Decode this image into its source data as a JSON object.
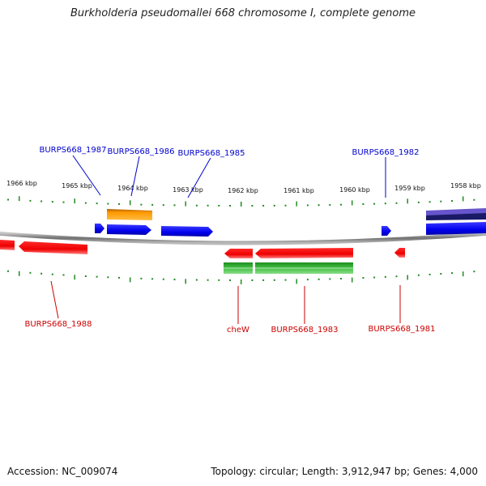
{
  "title": "Burkholderia pseudomallei 668 chromosome I, complete genome",
  "footer": {
    "accession": "Accession: NC_009074",
    "topology": "Topology: circular; Length: 3,912,947 bp; Genes: 4,000"
  },
  "colors": {
    "plus_strand_gene": "#0000ee",
    "minus_strand_gene": "#ee0000",
    "orange_feature": "#ff9900",
    "green_feature": "#33bb33",
    "purple_feature": "#6655cc",
    "navy_feature": "#1a1a66",
    "tick": "#228b22",
    "backbone": "#888888"
  },
  "ticks": [
    "1966 kbp",
    "1965 kbp",
    "1964 kbp",
    "1963 kbp",
    "1962 kbp",
    "1961 kbp",
    "1960 kbp",
    "1959 kbp",
    "1958 kbp"
  ],
  "labels_top": [
    "BURPS668_1987",
    "BURPS668_1986",
    "BURPS668_1985",
    "BURPS668_1982"
  ],
  "labels_bottom": [
    "BURPS668_1988",
    "cheW",
    "BURPS668_1983",
    "BURPS668_1981"
  ]
}
